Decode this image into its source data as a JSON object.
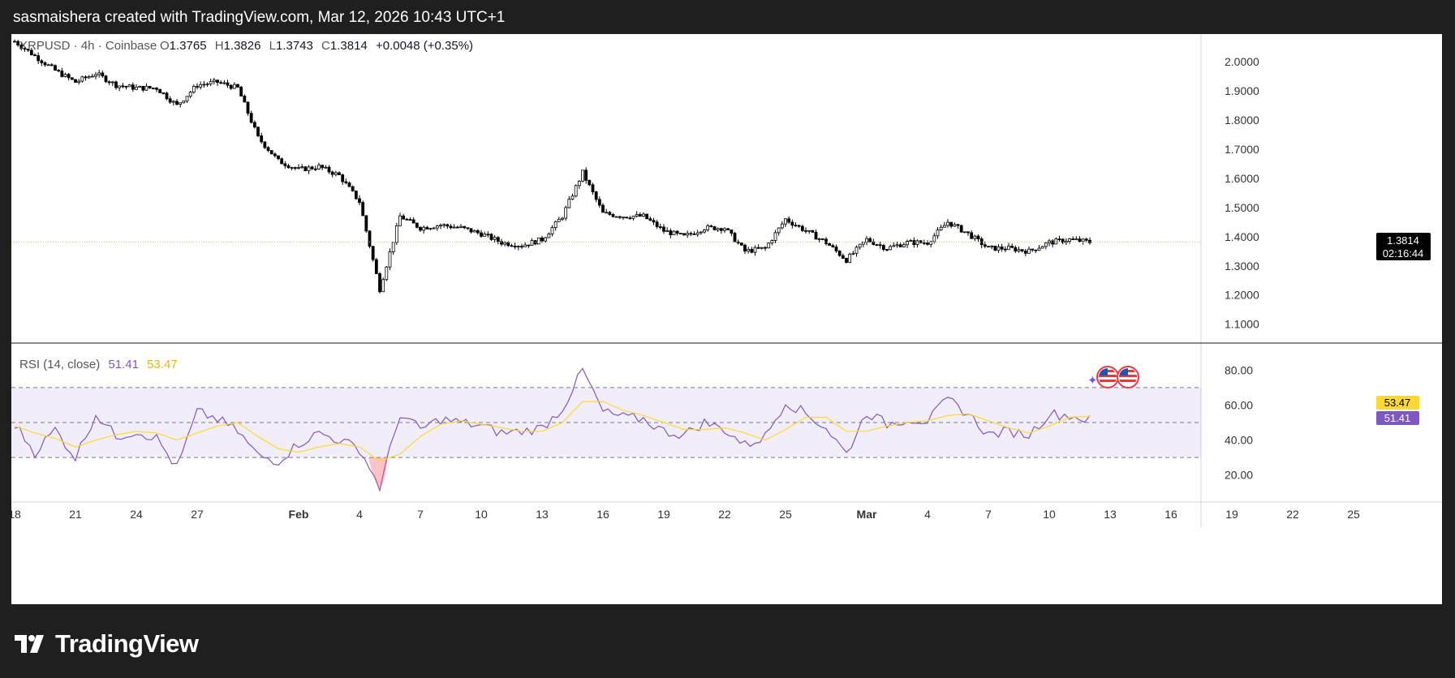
{
  "header": {
    "credit": "sasmaishera created with TradingView.com, Mar 12, 2026 10:43 UTC+1"
  },
  "footer": {
    "brand": "TradingView",
    "logo_icon": "tradingview-logo-icon"
  },
  "legend": {
    "symbol": "XRPUSD · 4h · Coinbase",
    "o_label": "O",
    "o_value": "1.3765",
    "h_label": "H",
    "h_value": "1.3826",
    "l_label": "L",
    "l_value": "1.3743",
    "c_label": "C",
    "c_value": "1.3814",
    "change": "+0.0048 (+0.35%)"
  },
  "price_badge": {
    "price": "1.3814",
    "countdown": "02:16:44"
  },
  "rsi": {
    "title": "RSI (14, close)",
    "rsi_value": "51.41",
    "ma_value": "53.47"
  },
  "colors": {
    "candle": "#000000",
    "rsi_line": "#7e57c2",
    "rsi_ma": "#fdd835",
    "band": "#7e57c2",
    "oversold_fill": "#f7525f",
    "last_price_line": "#c9cc7a",
    "axis_text": "#333333"
  },
  "chart_data": [
    {
      "type": "candlestick",
      "title": "XRPUSD · 4h · Coinbase",
      "timeframe": "4h",
      "y_ticks": [
        "2.0000",
        "1.9000",
        "1.8000",
        "1.7000",
        "1.6000",
        "1.5000",
        "1.4000",
        "1.3000",
        "1.2000",
        "1.1000"
      ],
      "ylim": [
        1.035,
        2.095
      ],
      "last_price": 1.3814,
      "ohlc": {
        "open": 1.3765,
        "high": 1.3826,
        "low": 1.3743,
        "close": 1.3814
      },
      "x_ticks": [
        "18",
        "21",
        "24",
        "27",
        "Feb",
        "4",
        "7",
        "10",
        "13",
        "16",
        "19",
        "22",
        "25",
        "Mar",
        "4",
        "7",
        "10",
        "13",
        "16",
        "19",
        "22",
        "25"
      ],
      "close_path": [
        [
          "Jan 18",
          2.07
        ],
        [
          "Jan 19",
          2.02
        ],
        [
          "Jan 20",
          1.97
        ],
        [
          "Jan 21",
          1.93
        ],
        [
          "Jan 22",
          1.96
        ],
        [
          "Jan 23",
          1.92
        ],
        [
          "Jan 24",
          1.91
        ],
        [
          "Jan 25",
          1.91
        ],
        [
          "Jan 26",
          1.85
        ],
        [
          "Jan 27",
          1.92
        ],
        [
          "Jan 28",
          1.93
        ],
        [
          "Jan 29",
          1.91
        ],
        [
          "Jan 30",
          1.74
        ],
        [
          "Jan 31",
          1.66
        ],
        [
          "Feb 1",
          1.63
        ],
        [
          "Feb 2",
          1.64
        ],
        [
          "Feb 3",
          1.61
        ],
        [
          "Feb 4",
          1.52
        ],
        [
          "Feb 5",
          1.22
        ],
        [
          "Feb 6",
          1.47
        ],
        [
          "Feb 7",
          1.43
        ],
        [
          "Feb 8",
          1.44
        ],
        [
          "Feb 9",
          1.43
        ],
        [
          "Feb 10",
          1.41
        ],
        [
          "Feb 11",
          1.38
        ],
        [
          "Feb 12",
          1.37
        ],
        [
          "Feb 13",
          1.39
        ],
        [
          "Feb 14",
          1.47
        ],
        [
          "Feb 15",
          1.62
        ],
        [
          "Feb 16",
          1.48
        ],
        [
          "Feb 17",
          1.47
        ],
        [
          "Feb 18",
          1.47
        ],
        [
          "Feb 19",
          1.42
        ],
        [
          "Feb 20",
          1.4
        ],
        [
          "Feb 21",
          1.43
        ],
        [
          "Feb 22",
          1.43
        ],
        [
          "Feb 23",
          1.35
        ],
        [
          "Feb 24",
          1.36
        ],
        [
          "Feb 25",
          1.46
        ],
        [
          "Feb 26",
          1.42
        ],
        [
          "Feb 27",
          1.38
        ],
        [
          "Feb 28",
          1.32
        ],
        [
          "Mar 1",
          1.39
        ],
        [
          "Mar 2",
          1.36
        ],
        [
          "Mar 3",
          1.38
        ],
        [
          "Mar 4",
          1.38
        ],
        [
          "Mar 5",
          1.45
        ],
        [
          "Mar 6",
          1.41
        ],
        [
          "Mar 7",
          1.36
        ],
        [
          "Mar 8",
          1.36
        ],
        [
          "Mar 9",
          1.35
        ],
        [
          "Mar 10",
          1.38
        ],
        [
          "Mar 11",
          1.39
        ],
        [
          "Mar 12",
          1.3814
        ]
      ],
      "events": [
        "us-flag-icon",
        "us-flag-icon"
      ]
    },
    {
      "type": "line",
      "title": "RSI (14, close)",
      "ylim": [
        5,
        95
      ],
      "y_ticks": [
        "80.00",
        "60.00",
        "40.00",
        "20.00"
      ],
      "band": [
        30,
        70
      ],
      "mid": 50,
      "series": [
        {
          "name": "RSI",
          "color": "#7e57c2",
          "last": 51.41,
          "path": [
            [
              "Jan 18",
              49
            ],
            [
              "Jan 19",
              33
            ],
            [
              "Jan 20",
              46
            ],
            [
              "Jan 21",
              30
            ],
            [
              "Jan 22",
              55
            ],
            [
              "Jan 23",
              42
            ],
            [
              "Jan 24",
              45
            ],
            [
              "Jan 25",
              41
            ],
            [
              "Jan 26",
              24
            ],
            [
              "Jan 27",
              56
            ],
            [
              "Jan 28",
              52
            ],
            [
              "Jan 29",
              45
            ],
            [
              "Jan 30",
              31
            ],
            [
              "Jan 31",
              28
            ],
            [
              "Feb 1",
              38
            ],
            [
              "Feb 2",
              44
            ],
            [
              "Feb 3",
              40
            ],
            [
              "Feb 4",
              35
            ],
            [
              "Feb 5",
              13
            ],
            [
              "Feb 6",
              55
            ],
            [
              "Feb 7",
              46
            ],
            [
              "Feb 8",
              52
            ],
            [
              "Feb 9",
              50
            ],
            [
              "Feb 10",
              48
            ],
            [
              "Feb 11",
              44
            ],
            [
              "Feb 12",
              45
            ],
            [
              "Feb 13",
              47
            ],
            [
              "Feb 14",
              58
            ],
            [
              "Feb 15",
              80
            ],
            [
              "Feb 16",
              56
            ],
            [
              "Feb 17",
              53
            ],
            [
              "Feb 18",
              52
            ],
            [
              "Feb 19",
              45
            ],
            [
              "Feb 20",
              43
            ],
            [
              "Feb 21",
              50
            ],
            [
              "Feb 22",
              46
            ],
            [
              "Feb 23",
              37
            ],
            [
              "Feb 24",
              42
            ],
            [
              "Feb 25",
              62
            ],
            [
              "Feb 26",
              55
            ],
            [
              "Feb 27",
              47
            ],
            [
              "Feb 28",
              32
            ],
            [
              "Mar 1",
              56
            ],
            [
              "Mar 2",
              49
            ],
            [
              "Mar 3",
              52
            ],
            [
              "Mar 4",
              51
            ],
            [
              "Mar 5",
              63
            ],
            [
              "Mar 6",
              55
            ],
            [
              "Mar 7",
              43
            ],
            [
              "Mar 8",
              45
            ],
            [
              "Mar 9",
              43
            ],
            [
              "Mar 10",
              55
            ],
            [
              "Mar 11",
              54
            ],
            [
              "Mar 12",
              51.41
            ]
          ]
        },
        {
          "name": "RSI-based MA",
          "color": "#fdd835",
          "last": 53.47,
          "path": [
            [
              "Jan 18",
              48
            ],
            [
              "Jan 19",
              44
            ],
            [
              "Jan 20",
              41
            ],
            [
              "Jan 21",
              36
            ],
            [
              "Jan 22",
              40
            ],
            [
              "Jan 23",
              43
            ],
            [
              "Jan 24",
              45
            ],
            [
              "Jan 25",
              44
            ],
            [
              "Jan 26",
              40
            ],
            [
              "Jan 27",
              44
            ],
            [
              "Jan 28",
              48
            ],
            [
              "Jan 29",
              50
            ],
            [
              "Jan 30",
              42
            ],
            [
              "Jan 31",
              35
            ],
            [
              "Feb 1",
              33
            ],
            [
              "Feb 2",
              36
            ],
            [
              "Feb 3",
              38
            ],
            [
              "Feb 4",
              36
            ],
            [
              "Feb 5",
              28
            ],
            [
              "Feb 6",
              32
            ],
            [
              "Feb 7",
              42
            ],
            [
              "Feb 8",
              49
            ],
            [
              "Feb 9",
              51
            ],
            [
              "Feb 10",
              49
            ],
            [
              "Feb 11",
              47
            ],
            [
              "Feb 12",
              45
            ],
            [
              "Feb 13",
              45
            ],
            [
              "Feb 14",
              50
            ],
            [
              "Feb 15",
              62
            ],
            [
              "Feb 16",
              62
            ],
            [
              "Feb 17",
              57
            ],
            [
              "Feb 18",
              54
            ],
            [
              "Feb 19",
              50
            ],
            [
              "Feb 20",
              46
            ],
            [
              "Feb 21",
              46
            ],
            [
              "Feb 22",
              47
            ],
            [
              "Feb 23",
              44
            ],
            [
              "Feb 24",
              40
            ],
            [
              "Feb 25",
              46
            ],
            [
              "Feb 26",
              53
            ],
            [
              "Feb 27",
              53
            ],
            [
              "Feb 28",
              45
            ],
            [
              "Mar 1",
              45
            ],
            [
              "Mar 2",
              48
            ],
            [
              "Mar 3",
              50
            ],
            [
              "Mar 4",
              51
            ],
            [
              "Mar 5",
              54
            ],
            [
              "Mar 6",
              55
            ],
            [
              "Mar 7",
              51
            ],
            [
              "Mar 8",
              47
            ],
            [
              "Mar 9",
              44
            ],
            [
              "Mar 10",
              48
            ],
            [
              "Mar 11",
              53
            ],
            [
              "Mar 12",
              53.47
            ]
          ]
        }
      ]
    }
  ]
}
